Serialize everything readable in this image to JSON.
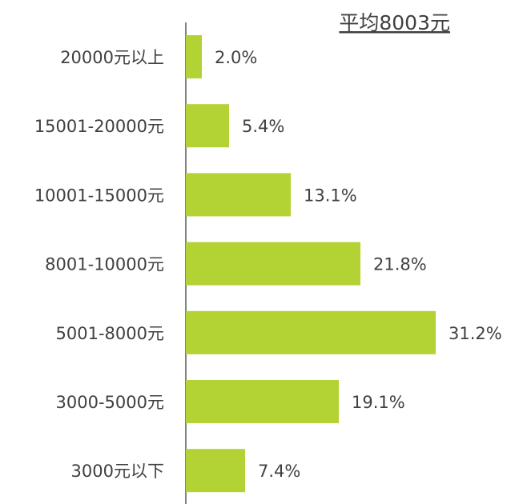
{
  "chart_data": {
    "type": "barh",
    "title": "平均8003元",
    "categories": [
      "20000元以上",
      "15001-20000元",
      "10001-15000元",
      "8001-10000元",
      "5001-8000元",
      "3000-5000元",
      "3000元以下"
    ],
    "values": [
      2.0,
      5.4,
      13.1,
      21.8,
      31.2,
      19.1,
      7.4
    ],
    "value_labels": [
      "2.0%",
      "5.4%",
      "13.1%",
      "21.8%",
      "31.2%",
      "19.1%",
      "7.4%"
    ],
    "color": "#b3d234"
  }
}
